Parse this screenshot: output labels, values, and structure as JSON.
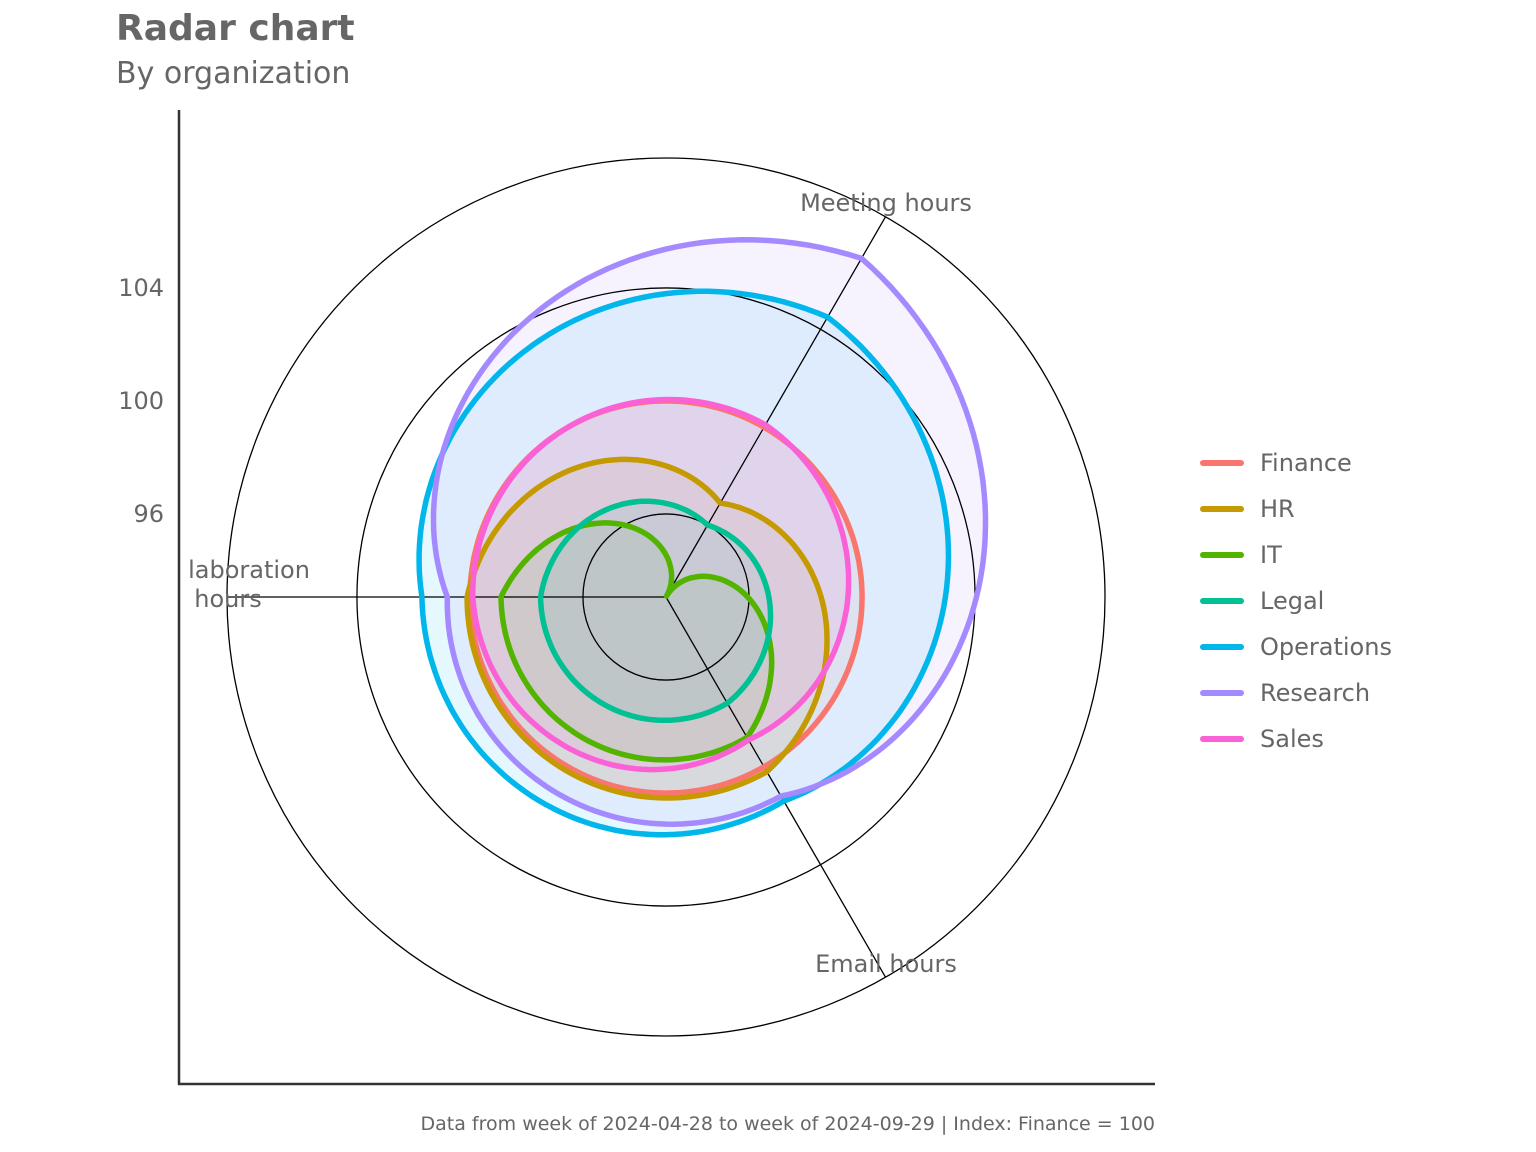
{
  "title": "Radar chart",
  "subtitle": "By organization",
  "caption": "Data from week of 2024-04-28 to week of 2024-09-29 | Index: Finance = 100",
  "chart_data": {
    "type": "radar",
    "title": "Radar chart",
    "subtitle": "By organization",
    "axes": [
      {
        "key": "collab",
        "label_lines": [
          "laboration",
          "hours"
        ]
      },
      {
        "key": "meeting",
        "label_lines": [
          "Meeting hours"
        ]
      },
      {
        "key": "email",
        "label_lines": [
          "Email hours"
        ]
      }
    ],
    "radial_ticks": [
      96,
      100,
      104
    ],
    "radial_tick_labels": [
      "96",
      "100",
      "104"
    ],
    "radial_range": [
      93.06,
      108.6
    ],
    "gridlines": [
      96,
      100,
      104
    ],
    "legend_position": "right",
    "series": [
      {
        "name": "Finance",
        "color": "#F8766D",
        "values": {
          "collab": 100.0,
          "meeting": 100.0,
          "email": 100.0
        }
      },
      {
        "name": "HR",
        "color": "#C49A00",
        "values": {
          "collab": 100.1,
          "meeting": 96.9,
          "email": 100.2
        }
      },
      {
        "name": "IT",
        "color": "#53B400",
        "values": {
          "collab": 98.9,
          "meeting": 93.1,
          "email": 98.8
        }
      },
      {
        "name": "Legal",
        "color": "#00C094",
        "values": {
          "collab": 97.5,
          "meeting": 96.0,
          "email": 97.4
        }
      },
      {
        "name": "Operations",
        "color": "#00B6EB",
        "values": {
          "collab": 101.7,
          "meeting": 104.5,
          "email": 101.4
        }
      },
      {
        "name": "Research",
        "color": "#A58AFF",
        "values": {
          "collab": 100.8,
          "meeting": 106.9,
          "email": 101.2
        }
      },
      {
        "name": "Sales",
        "color": "#FB61D7",
        "values": {
          "collab": 99.9,
          "meeting": 100.1,
          "email": 98.9
        }
      }
    ]
  }
}
